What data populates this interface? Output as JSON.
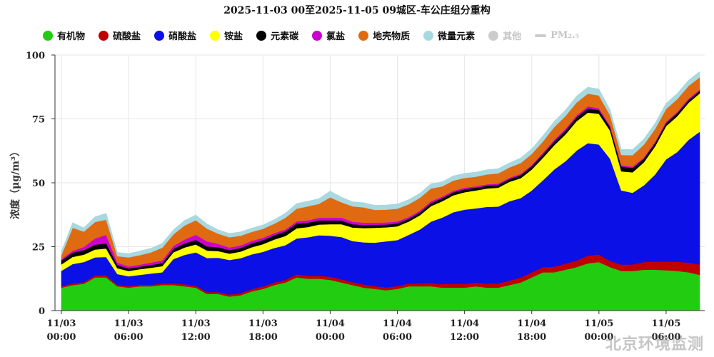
{
  "title": "2025-11-03 00至2025-11-05 09城区-车公庄组分重构",
  "watermark": "北京环境监测",
  "chart_data": {
    "type": "area",
    "stacked": true,
    "title": "2025-11-03 00至2025-11-05 09城区-车公庄组分重构",
    "ylabel": "浓度（μg/m³）",
    "xlabel": "",
    "ylim": [
      0,
      100
    ],
    "yticks": [
      0,
      25,
      50,
      75,
      100
    ],
    "x_ticks": [
      {
        "hour": 0,
        "line1": "11/03",
        "line2": "00:00"
      },
      {
        "hour": 6,
        "line1": "11/03",
        "line2": "06:00"
      },
      {
        "hour": 12,
        "line1": "11/03",
        "line2": "12:00"
      },
      {
        "hour": 18,
        "line1": "11/03",
        "line2": "18:00"
      },
      {
        "hour": 24,
        "line1": "11/04",
        "line2": "00:00"
      },
      {
        "hour": 30,
        "line1": "11/04",
        "line2": "06:00"
      },
      {
        "hour": 36,
        "line1": "11/04",
        "line2": "12:00"
      },
      {
        "hour": 42,
        "line1": "11/04",
        "line2": "18:00"
      },
      {
        "hour": 48,
        "line1": "11/05",
        "line2": "00:00"
      },
      {
        "hour": 54,
        "line1": "11/05",
        "line2": "06:00"
      }
    ],
    "grid": true,
    "legend_position": "top",
    "hours": [
      0,
      1,
      2,
      3,
      4,
      5,
      6,
      7,
      8,
      9,
      10,
      11,
      12,
      13,
      14,
      15,
      16,
      17,
      18,
      19,
      20,
      21,
      22,
      23,
      24,
      25,
      26,
      27,
      28,
      29,
      30,
      31,
      32,
      33,
      34,
      35,
      36,
      37,
      38,
      39,
      40,
      41,
      42,
      43,
      44,
      45,
      46,
      47,
      48,
      49,
      50,
      51,
      52,
      53,
      54,
      55,
      56,
      57
    ],
    "series": [
      {
        "name": "有机物",
        "color": "#22cc11",
        "values": [
          9,
          10,
          10.5,
          13,
          13,
          9.5,
          9,
          9.5,
          9.5,
          10,
          10,
          9.5,
          9,
          6.5,
          6.5,
          5.5,
          6,
          7.5,
          8.5,
          10,
          11,
          13,
          12.5,
          12.5,
          12,
          11,
          10,
          9,
          8.5,
          8,
          8.5,
          9.5,
          9.5,
          9.5,
          9,
          9,
          9,
          9.5,
          9,
          9,
          10,
          11,
          13,
          15,
          15,
          16,
          17,
          18.5,
          19,
          17,
          15.5,
          15.5,
          16,
          16,
          15.8,
          15.5,
          15,
          14
        ]
      },
      {
        "name": "硫酸盐",
        "color": "#c00000",
        "values": [
          0.6,
          0.7,
          0.7,
          0.8,
          0.8,
          0.6,
          0.6,
          0.6,
          0.6,
          0.7,
          0.7,
          0.8,
          0.8,
          0.8,
          0.8,
          0.8,
          0.9,
          0.9,
          1,
          1,
          1.1,
          1.2,
          1.2,
          1.2,
          1.3,
          1.3,
          1.2,
          1.2,
          1.1,
          1.1,
          1.1,
          1.1,
          1.2,
          1.3,
          1.4,
          1.5,
          1.5,
          1.5,
          1.6,
          1.7,
          1.8,
          2,
          2,
          2,
          2.2,
          2.4,
          2.6,
          3,
          3,
          2.4,
          2.5,
          2.6,
          3,
          3.2,
          3.4,
          3.6,
          3.8,
          4
        ]
      },
      {
        "name": "硝酸盐",
        "color": "#0a10e6",
        "values": [
          6,
          7.5,
          7.8,
          7,
          7.2,
          4.2,
          3.8,
          3.9,
          4.4,
          4.3,
          9.5,
          11.5,
          13,
          13.3,
          13.4,
          13.5,
          13.6,
          13.6,
          13.5,
          13.5,
          13.5,
          14,
          15,
          15.8,
          16,
          16.5,
          16,
          16.5,
          17,
          18,
          18,
          19,
          21,
          24,
          26,
          28,
          29,
          29,
          30,
          30,
          31,
          31,
          32,
          34,
          38,
          40,
          43,
          44,
          43,
          40,
          29,
          28,
          30,
          34,
          40,
          43,
          48,
          52
        ]
      },
      {
        "name": "铵盐",
        "color": "#ffff00",
        "values": [
          2.5,
          2.8,
          2.9,
          3.1,
          3.3,
          2.3,
          2.1,
          2.2,
          2.3,
          2.4,
          2.6,
          2.9,
          3.1,
          2.9,
          2.6,
          2.5,
          2.6,
          2.8,
          3,
          3.3,
          3.6,
          4,
          4,
          4.2,
          4.5,
          5,
          5.3,
          5.6,
          5.8,
          5.5,
          5.4,
          5.2,
          5.6,
          6.1,
          6.4,
          6.6,
          6.8,
          7,
          7.2,
          7.4,
          7.6,
          7.8,
          8.2,
          8.8,
          9.5,
          10.5,
          11.5,
          12,
          12,
          11,
          7.5,
          8,
          9,
          11,
          13,
          14,
          14.5,
          15
        ]
      },
      {
        "name": "元素碳",
        "color": "#000000",
        "values": [
          1.5,
          1.7,
          1.8,
          1.9,
          2,
          1.2,
          1,
          1,
          1.1,
          1.2,
          1.4,
          1.6,
          1.8,
          1.6,
          1.5,
          1.4,
          1.4,
          1.5,
          1.6,
          1.7,
          1.8,
          1.9,
          1.7,
          1.6,
          1.5,
          1.4,
          1.3,
          1.2,
          1.2,
          1.1,
          1.1,
          1.1,
          1.1,
          1.2,
          1.2,
          1.2,
          1.2,
          1.1,
          1.1,
          1.1,
          1.1,
          1.2,
          1.3,
          1.4,
          1.5,
          1.5,
          1.6,
          1.6,
          1.5,
          1.4,
          1.9,
          1.7,
          1.4,
          1.3,
          1.2,
          1.2,
          1.1,
          1
        ]
      },
      {
        "name": "氯盐",
        "color": "#cc00cc",
        "values": [
          0.6,
          0.7,
          1.2,
          2.4,
          3.3,
          1,
          0.8,
          0.8,
          0.9,
          1,
          1.1,
          1.5,
          2,
          2,
          1.3,
          1,
          1,
          1,
          0.9,
          0.8,
          0.8,
          0.8,
          0.9,
          1,
          1,
          1.2,
          1,
          0.9,
          0.8,
          0.8,
          0.8,
          0.7,
          0.7,
          0.7,
          0.6,
          0.6,
          0.6,
          0.5,
          0.5,
          0.5,
          0.5,
          0.5,
          0.5,
          0.6,
          0.6,
          0.7,
          0.7,
          0.8,
          0.7,
          0.6,
          0.5,
          0.5,
          0.5,
          0.5,
          0.5,
          0.5,
          0.5,
          0.5
        ]
      },
      {
        "name": "地壳物质",
        "color": "#e06a10",
        "values": [
          1.5,
          9,
          6,
          6.5,
          6,
          2.5,
          3.5,
          3.7,
          4,
          5,
          4.5,
          5.5,
          5.7,
          5,
          4,
          4,
          3.8,
          3.5,
          3.5,
          3.7,
          4.5,
          5,
          5.5,
          5.5,
          8,
          6,
          6,
          6,
          5,
          5,
          5,
          5,
          5,
          5,
          4,
          4,
          3.8,
          3.8,
          3.9,
          4,
          4,
          4.2,
          4.3,
          4.4,
          5,
          5,
          5,
          5,
          5,
          4,
          4,
          4.5,
          5,
          5,
          5,
          5,
          5,
          4.8
        ]
      },
      {
        "name": "微量元素",
        "color": "#a8d8e0",
        "values": [
          1.5,
          2,
          1.5,
          2,
          2.5,
          1.5,
          1.5,
          1.6,
          1.6,
          1.7,
          1.8,
          2,
          2,
          1.8,
          1.5,
          1.5,
          1.5,
          1.5,
          1.5,
          1.6,
          1.8,
          2,
          2,
          2,
          2.5,
          2,
          1.8,
          1.8,
          1.8,
          1.8,
          1.8,
          1.8,
          1.8,
          1.8,
          1.8,
          1.8,
          1.8,
          1.8,
          1.8,
          1.8,
          1.8,
          2,
          2,
          2.2,
          2.2,
          2.3,
          2.5,
          2.5,
          2.5,
          2.2,
          2.2,
          2.2,
          2.2,
          2.2,
          2.2,
          2.2,
          2.2,
          2.2
        ]
      }
    ],
    "disabled_series": [
      {
        "name": "其他",
        "color": "#cccccc"
      },
      {
        "name": "PM2.5",
        "color": "#cccccc"
      }
    ]
  },
  "legend": [
    {
      "name": "有机物",
      "color": "#22cc11",
      "kind": "dot",
      "disabled": false
    },
    {
      "name": "硫酸盐",
      "color": "#c00000",
      "kind": "dot",
      "disabled": false
    },
    {
      "name": "硝酸盐",
      "color": "#0a10e6",
      "kind": "dot",
      "disabled": false
    },
    {
      "name": "铵盐",
      "color": "#ffff00",
      "kind": "dot",
      "disabled": false
    },
    {
      "name": "元素碳",
      "color": "#000000",
      "kind": "dot",
      "disabled": false
    },
    {
      "name": "氯盐",
      "color": "#cc00cc",
      "kind": "dot",
      "disabled": false
    },
    {
      "name": "地壳物质",
      "color": "#e06a10",
      "kind": "dot",
      "disabled": false
    },
    {
      "name": "微量元素",
      "color": "#a8d8e0",
      "kind": "dot",
      "disabled": false
    },
    {
      "name": "其他",
      "color": "#cccccc",
      "kind": "dot",
      "disabled": true
    },
    {
      "name": "PM₂.₅",
      "color": "#cccccc",
      "kind": "line",
      "disabled": true
    }
  ]
}
